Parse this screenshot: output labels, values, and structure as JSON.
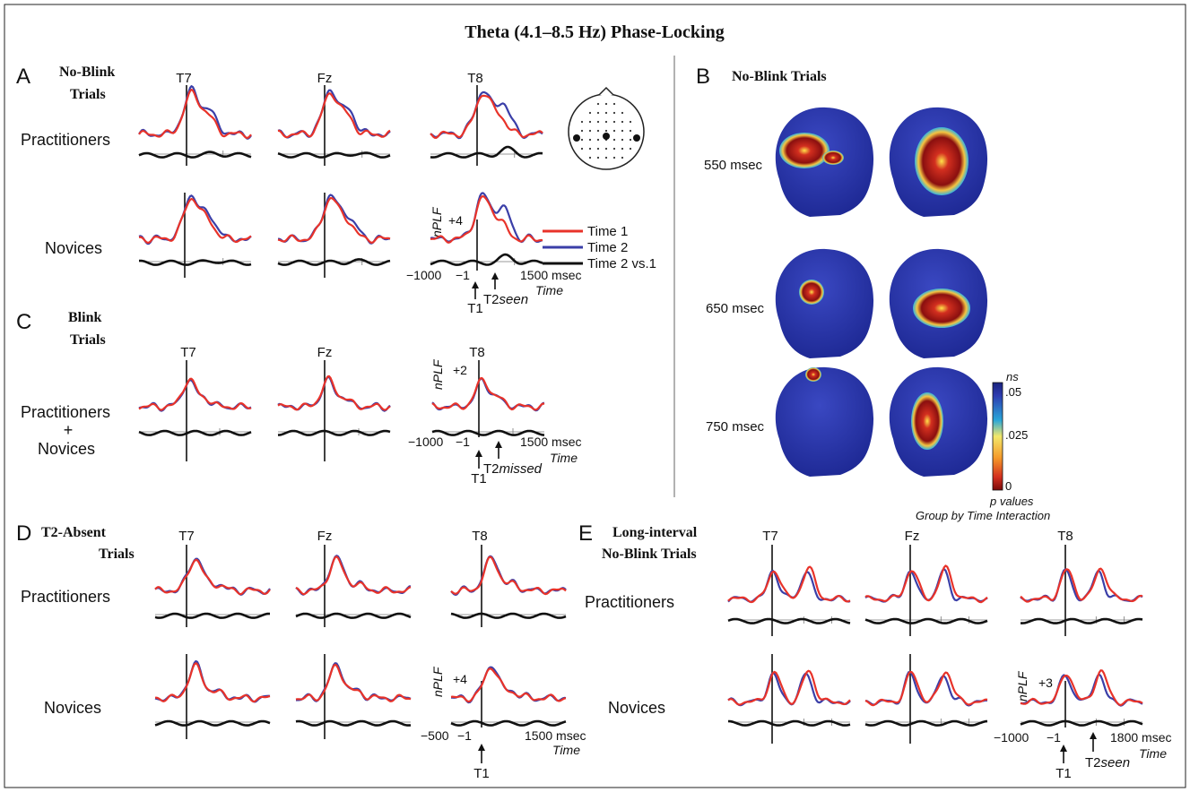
{
  "figure": {
    "title": "Theta (4.1–8.5 Hz) Phase-Locking",
    "colors": {
      "time1": "#e8332a",
      "time2": "#3b3fa8",
      "diff": "#111111",
      "brain_bg": "#2d3bb0"
    }
  },
  "panelA": {
    "letter": "A",
    "heading_line1": "No-Blink",
    "heading_line2": "Trials",
    "electrodes": [
      "T7",
      "Fz",
      "T8"
    ],
    "row_labels": [
      "Practitioners",
      "Novices"
    ],
    "y_label": "nPLF",
    "y_tick": "+4",
    "x_start": "−1000",
    "x_zero": "−1",
    "x_end": "1500 msec",
    "x_axis": "Time",
    "t1": "T1",
    "t2": "T2",
    "t2_suffix": "seen"
  },
  "legend": {
    "time1": "Time 1",
    "time2": "Time 2",
    "diff": "Time 2 vs.1"
  },
  "panelB": {
    "letter": "B",
    "heading": "No-Blink Trials",
    "rows": [
      "550 msec",
      "650 msec",
      "750 msec"
    ],
    "colorbar_ticks": [
      "ns",
      ".05",
      ".025",
      "0"
    ],
    "colorbar_title": "p values",
    "colorbar_subtitle": "Group by Time Interaction"
  },
  "panelC": {
    "letter": "C",
    "heading_line1": "Blink",
    "heading_line2": "Trials",
    "electrodes": [
      "T7",
      "Fz",
      "T8"
    ],
    "row_line1": "Practitioners",
    "row_line2": "+",
    "row_line3": "Novices",
    "y_label": "nPLF",
    "y_tick": "+2",
    "x_start": "−1000",
    "x_zero": "−1",
    "x_end": "1500 msec",
    "x_axis": "Time",
    "t1": "T1",
    "t2": "T2",
    "t2_suffix": "missed"
  },
  "panelD": {
    "letter": "D",
    "heading_line1": "T2-Absent",
    "heading_line2": "Trials",
    "electrodes": [
      "T7",
      "Fz",
      "T8"
    ],
    "row_labels": [
      "Practitioners",
      "Novices"
    ],
    "y_label": "nPLF",
    "y_tick": "+4",
    "x_start": "−500",
    "x_zero": "−1",
    "x_end": "1500 msec",
    "x_axis": "Time",
    "t1": "T1"
  },
  "panelE": {
    "letter": "E",
    "heading_line1": "Long-interval",
    "heading_line2": "No-Blink Trials",
    "electrodes": [
      "T7",
      "Fz",
      "T8"
    ],
    "row_labels": [
      "Practitioners",
      "Novices"
    ],
    "y_label": "nPLF",
    "y_tick": "+3",
    "x_start": "−1000",
    "x_zero": "−1",
    "x_end": "1800 msec",
    "x_axis": "Time",
    "t1": "T1",
    "t2": "T2",
    "t2_suffix": "seen"
  },
  "chart_data": {
    "type": "line",
    "title": "Theta (4.1–8.5 Hz) Phase-Locking",
    "series": [
      {
        "name": "Time 1"
      },
      {
        "name": "Time 2"
      },
      {
        "name": "Time 2 vs.1"
      }
    ]
  }
}
